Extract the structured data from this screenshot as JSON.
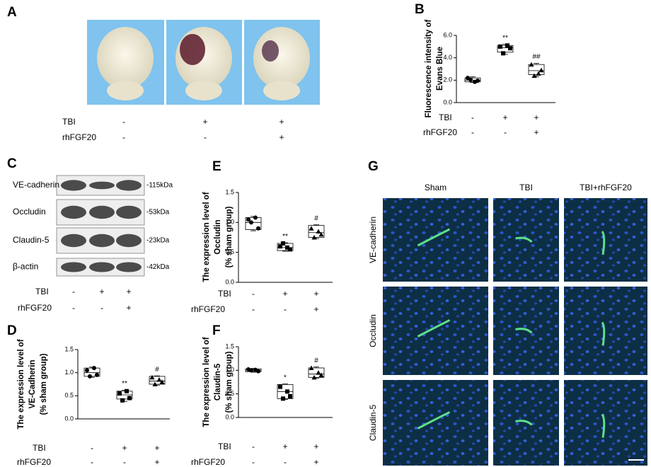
{
  "panel_letters": [
    "A",
    "B",
    "C",
    "D",
    "E",
    "F",
    "G"
  ],
  "panel_a": {
    "conditions": [
      {
        "name": "TBI",
        "values": [
          "-",
          "+",
          "+"
        ]
      },
      {
        "name": "rhFGF20",
        "values": [
          "-",
          "-",
          "+"
        ]
      }
    ]
  },
  "panel_c": {
    "bands": [
      {
        "name": "VE-cadherin",
        "size": "-115kDa"
      },
      {
        "name": "Occludin",
        "size": "-53kDa"
      },
      {
        "name": "Claudin-5",
        "size": "-23kDa"
      },
      {
        "name": "β-actin",
        "size": "-42kDa"
      }
    ],
    "conditions": [
      {
        "name": "TBI",
        "values": [
          "-",
          "+",
          "+"
        ]
      },
      {
        "name": "rhFGF20",
        "values": [
          "-",
          "-",
          "+"
        ]
      }
    ]
  },
  "panel_g": {
    "columns": [
      "Sham",
      "TBI",
      "TBI+rhFGF20"
    ],
    "rows": [
      "VE-cadherin",
      "Occludin",
      "Claudin-5"
    ]
  },
  "chart_data": [
    {
      "type": "box",
      "y_label": [
        "Fluorescence intensity of",
        "Evans Blue"
      ],
      "ylim": [
        0,
        6
      ],
      "yticks": [
        {
          "value": 0,
          "label": "0.0"
        },
        {
          "value": 2,
          "label": "2.0"
        },
        {
          "value": 4,
          "label": "4.0"
        },
        {
          "value": 6,
          "label": "6.0"
        }
      ],
      "color": "#000000",
      "groups": [
        {
          "marker": "circle",
          "points": [
            2.2,
            1.95,
            2.05,
            1.85
          ],
          "whisker_low": 1.8,
          "q1": 1.85,
          "median": 2.0,
          "q3": 2.2,
          "whisker_high": 2.3,
          "annotation": null
        },
        {
          "marker": "square",
          "points": [
            5.0,
            4.85,
            4.4,
            5.1
          ],
          "whisker_low": 4.3,
          "q1": 4.5,
          "median": 4.9,
          "q3": 5.1,
          "whisker_high": 5.2,
          "annotation": "**"
        },
        {
          "marker": "triangle",
          "points": [
            3.4,
            2.9,
            2.4,
            2.6
          ],
          "whisker_low": 2.3,
          "q1": 2.5,
          "median": 2.85,
          "q3": 3.4,
          "whisker_high": 3.5,
          "annotation": "##"
        }
      ],
      "conditions": [
        {
          "name": "TBI",
          "values": [
            "-",
            "+",
            "+"
          ]
        },
        {
          "name": "rhFGF20",
          "values": [
            "-",
            "-",
            "+"
          ]
        }
      ]
    },
    {
      "type": "box",
      "y_label": [
        "The expression level of",
        "VE-Cadherin",
        "(% sham group)"
      ],
      "ylim": [
        0,
        1.5
      ],
      "yticks": [
        {
          "value": 0,
          "label": "0.0"
        },
        0.5,
        {
          "value": 1,
          "label": "1.0"
        },
        1.5
      ],
      "color": "#000000",
      "groups": [
        {
          "marker": "circle",
          "points": [
            1.05,
            0.95,
            0.92,
            1.1
          ],
          "whisker_low": 0.9,
          "q1": 0.92,
          "median": 1.0,
          "q3": 1.1,
          "whisker_high": 1.12,
          "annotation": null
        },
        {
          "marker": "square",
          "points": [
            0.55,
            0.45,
            0.4,
            0.6
          ],
          "whisker_low": 0.38,
          "q1": 0.43,
          "median": 0.52,
          "q3": 0.6,
          "whisker_high": 0.62,
          "annotation": "**"
        },
        {
          "marker": "triangle",
          "points": [
            0.9,
            0.8,
            0.75,
            0.85
          ],
          "whisker_low": 0.73,
          "q1": 0.75,
          "median": 0.82,
          "q3": 0.92,
          "whisker_high": 0.93,
          "annotation": "#"
        }
      ],
      "conditions": [
        {
          "name": "TBI",
          "values": [
            "-",
            "+",
            "+"
          ]
        },
        {
          "name": "rhFGF20",
          "values": [
            "-",
            "-",
            "+"
          ]
        }
      ]
    },
    {
      "type": "box",
      "y_label": [
        "The expression level of",
        "Occludin",
        "(% sham group)"
      ],
      "ylim": [
        0,
        1.5
      ],
      "yticks": [
        {
          "value": 0,
          "label": "0.0"
        },
        0.5,
        {
          "value": 1,
          "label": "1.0"
        },
        1.5
      ],
      "color": "#000000",
      "groups": [
        {
          "marker": "circle",
          "points": [
            1.05,
            0.9,
            1.0,
            1.08
          ],
          "whisker_low": 0.86,
          "q1": 0.88,
          "median": 1.0,
          "q3": 1.08,
          "whisker_high": 1.1,
          "annotation": null
        },
        {
          "marker": "square",
          "points": [
            0.6,
            0.55,
            0.65,
            0.58
          ],
          "whisker_low": 0.52,
          "q1": 0.53,
          "median": 0.58,
          "q3": 0.65,
          "whisker_high": 0.66,
          "annotation": "**"
        },
        {
          "marker": "triangle",
          "points": [
            0.9,
            0.8,
            0.75,
            0.85
          ],
          "whisker_low": 0.73,
          "q1": 0.75,
          "median": 0.83,
          "q3": 0.95,
          "whisker_high": 0.96,
          "annotation": "#"
        }
      ],
      "conditions": [
        {
          "name": "TBI",
          "values": [
            "-",
            "+",
            "+"
          ]
        },
        {
          "name": "rhFGF20",
          "values": [
            "-",
            "-",
            "+"
          ]
        }
      ]
    },
    {
      "type": "box",
      "y_label": [
        "The expression level of",
        "Claudin-5",
        "(% sham group)"
      ],
      "ylim": [
        0,
        1.5
      ],
      "yticks": [
        {
          "value": 0,
          "label": "0.0"
        },
        0.5,
        {
          "value": 1,
          "label": "1.0"
        },
        1.5
      ],
      "color": "#000000",
      "groups": [
        {
          "marker": "circle",
          "points": [
            1.02,
            0.98,
            1.0,
            1.01
          ],
          "whisker_low": 0.96,
          "q1": 0.97,
          "median": 1.0,
          "q3": 1.03,
          "whisker_high": 1.04,
          "annotation": null
        },
        {
          "marker": "square",
          "points": [
            0.65,
            0.45,
            0.4,
            0.55
          ],
          "whisker_low": 0.38,
          "q1": 0.4,
          "median": 0.55,
          "q3": 0.7,
          "whisker_high": 0.71,
          "annotation": "*"
        },
        {
          "marker": "triangle",
          "points": [
            1.05,
            0.9,
            0.85,
            0.95
          ],
          "whisker_low": 0.83,
          "q1": 0.85,
          "median": 0.92,
          "q3": 1.05,
          "whisker_high": 1.07,
          "annotation": "#"
        }
      ],
      "conditions": [
        {
          "name": "TBI",
          "values": [
            "-",
            "+",
            "+"
          ]
        },
        {
          "name": "rhFGF20",
          "values": [
            "-",
            "-",
            "+"
          ]
        }
      ]
    }
  ]
}
